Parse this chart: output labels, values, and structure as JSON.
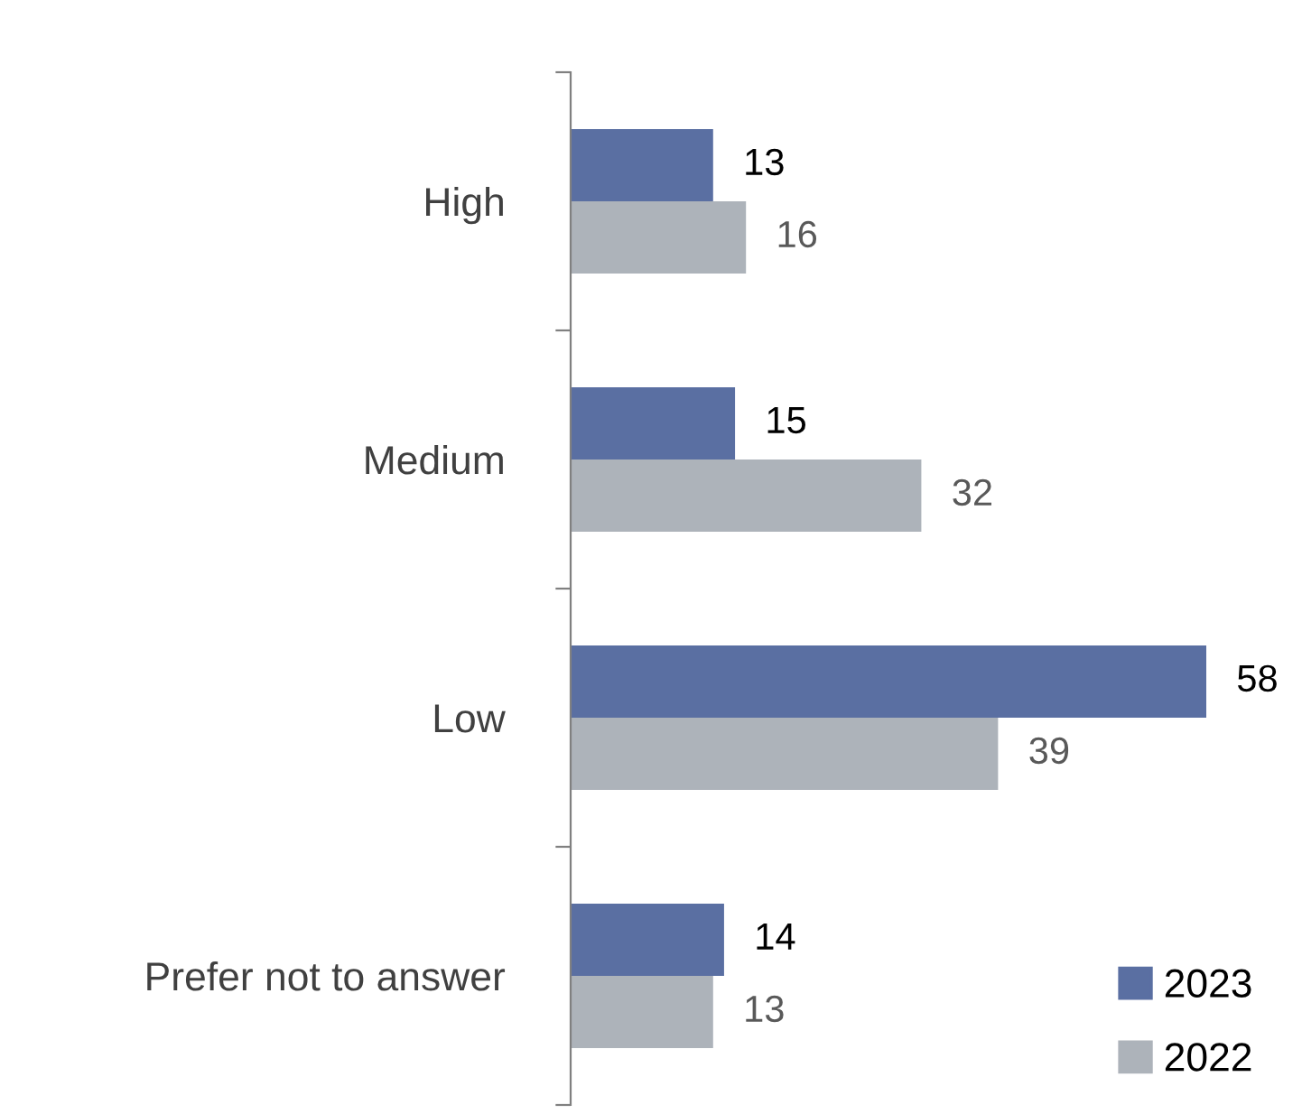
{
  "chart_data": {
    "type": "bar",
    "orientation": "horizontal",
    "categories": [
      "High",
      "Medium",
      "Low",
      "Prefer not to answer"
    ],
    "series": [
      {
        "name": "2023",
        "color": "#5a6fa2",
        "values": [
          13,
          15,
          58,
          14
        ]
      },
      {
        "name": "2022",
        "color": "#adb3ba",
        "values": [
          16,
          32,
          39,
          13
        ]
      }
    ],
    "data_labels": true,
    "legend": "bottom right",
    "grid": false
  }
}
